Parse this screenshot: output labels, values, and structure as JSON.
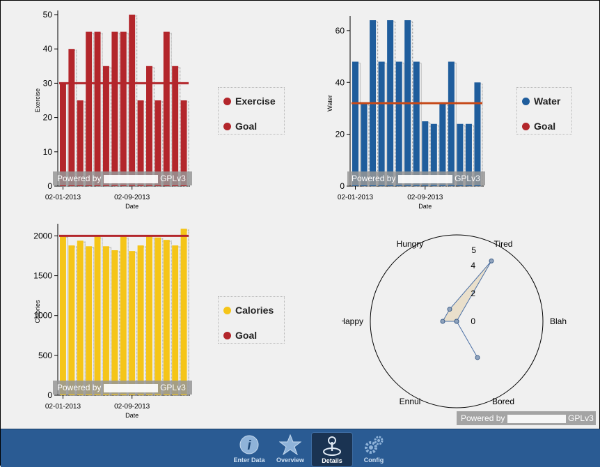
{
  "exercise_legend": {
    "items": [
      {
        "label": "Exercise",
        "color": "#b3262b"
      },
      {
        "label": "Goal",
        "color": "#b3262b"
      }
    ]
  },
  "water_legend": {
    "items": [
      {
        "label": "Water",
        "color": "#1f5d9c"
      },
      {
        "label": "Goal",
        "color": "#b3262b"
      }
    ]
  },
  "calories_legend": {
    "items": [
      {
        "label": "Calories",
        "color": "#f5c518"
      },
      {
        "label": "Goal",
        "color": "#b3262b"
      }
    ]
  },
  "powered_by": {
    "left": "Powered by",
    "right": "GPLv3"
  },
  "tabs": [
    {
      "label": "Enter Data",
      "icon": "info-icon"
    },
    {
      "label": "Overview",
      "icon": "star-icon"
    },
    {
      "label": "Details",
      "icon": "joystick-icon",
      "active": true
    },
    {
      "label": "Config",
      "icon": "gears-icon"
    }
  ],
  "chart_data": [
    {
      "type": "bar",
      "ylabel": "Exercise",
      "xlabel": "Date",
      "x_tick_labels": [
        "02-01-2013",
        "02-09-2013"
      ],
      "ylim": [
        0,
        50
      ],
      "yticks": [
        0,
        10,
        20,
        30,
        40,
        50
      ],
      "values": [
        30,
        40,
        25,
        45,
        45,
        35,
        45,
        45,
        50,
        25,
        35,
        25,
        45,
        35,
        25
      ],
      "goal": 30,
      "bar_color": "#b3262b",
      "goal_color": "#b3262b"
    },
    {
      "type": "bar",
      "ylabel": "Water",
      "xlabel": "Date",
      "x_tick_labels": [
        "02-01-2013",
        "02-09-2013"
      ],
      "ylim": [
        0,
        64
      ],
      "yticks": [
        0,
        20,
        40,
        60
      ],
      "values": [
        48,
        32,
        64,
        48,
        64,
        48,
        64,
        48,
        25,
        24,
        32,
        48,
        24,
        24,
        40
      ],
      "goal": 32,
      "bar_color": "#1f5d9c",
      "goal_color": "#c64a1a"
    },
    {
      "type": "bar",
      "ylabel": "Calories",
      "xlabel": "Date",
      "x_tick_labels": [
        "02-01-2013",
        "02-09-2013"
      ],
      "ylim": [
        0,
        2100
      ],
      "yticks": [
        0,
        500,
        1000,
        1500,
        2000
      ],
      "values": [
        2000,
        1880,
        1940,
        1870,
        1990,
        1870,
        1820,
        1990,
        1810,
        1880,
        1990,
        1980,
        1950,
        1880,
        2090
      ],
      "goal": 2000,
      "bar_color": "#f5c518",
      "goal_color": "#b3262b"
    },
    {
      "type": "radar",
      "axes": [
        "Tired",
        "Blah",
        "Bored",
        "Ennui",
        "Happy",
        "Hungry"
      ],
      "values": [
        5,
        0,
        3,
        0,
        1,
        1
      ],
      "rlim": [
        0,
        5
      ],
      "rticks": [
        0,
        2,
        4
      ],
      "max_label": "5",
      "fill_color": "#e8dcc4",
      "line_color": "#4a6fa5"
    }
  ]
}
